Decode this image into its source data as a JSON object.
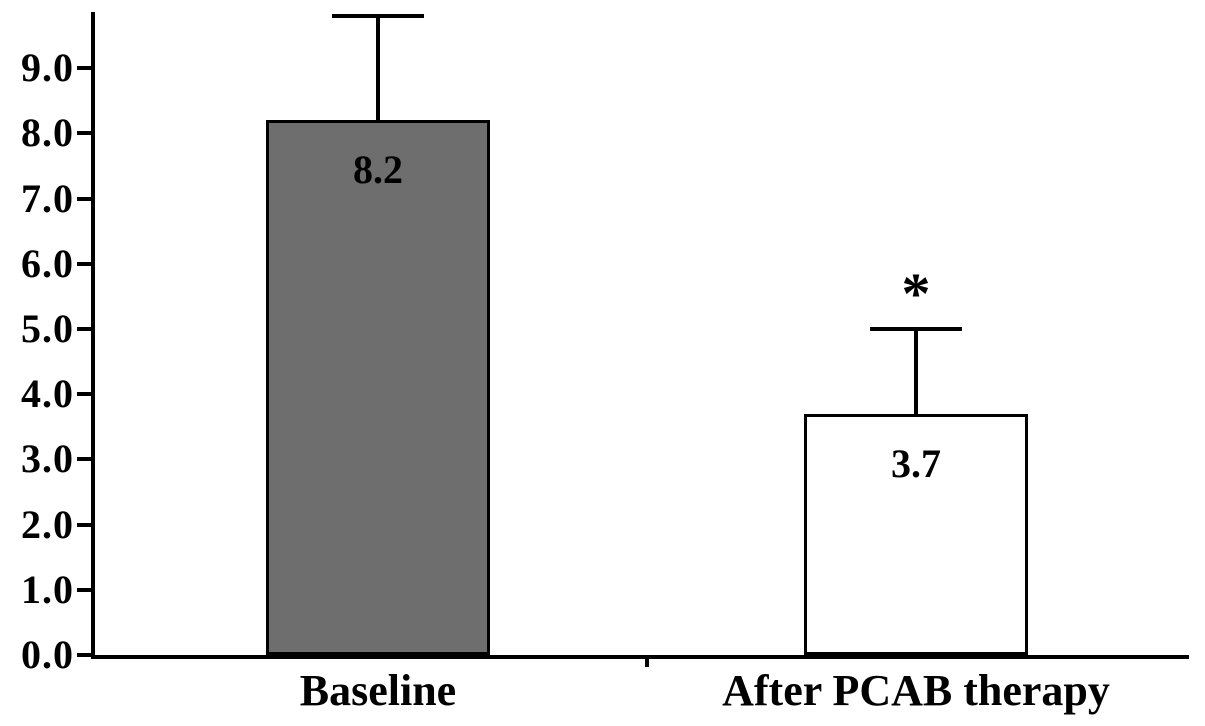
{
  "chart_data": {
    "type": "bar",
    "title": "",
    "xlabel": "",
    "ylabel": "",
    "categories": [
      "Baseline",
      "After PCAB therapy"
    ],
    "values": [
      8.2,
      3.7
    ],
    "value_labels": [
      "8.2",
      "3.7"
    ],
    "error_upper": [
      1.6,
      1.3
    ],
    "annotations": [
      "",
      "*"
    ],
    "bar_colors": [
      "#6e6e6e",
      "#ffffff"
    ],
    "bar_border_color": "#000000",
    "axis_color": "#000000",
    "ylim": [
      0,
      9
    ],
    "yticks": [
      "0.0",
      "1.0",
      "2.0",
      "3.0",
      "4.0",
      "5.0",
      "6.0",
      "7.0",
      "8.0",
      "9.0"
    ],
    "grid": false,
    "legend": "none"
  }
}
